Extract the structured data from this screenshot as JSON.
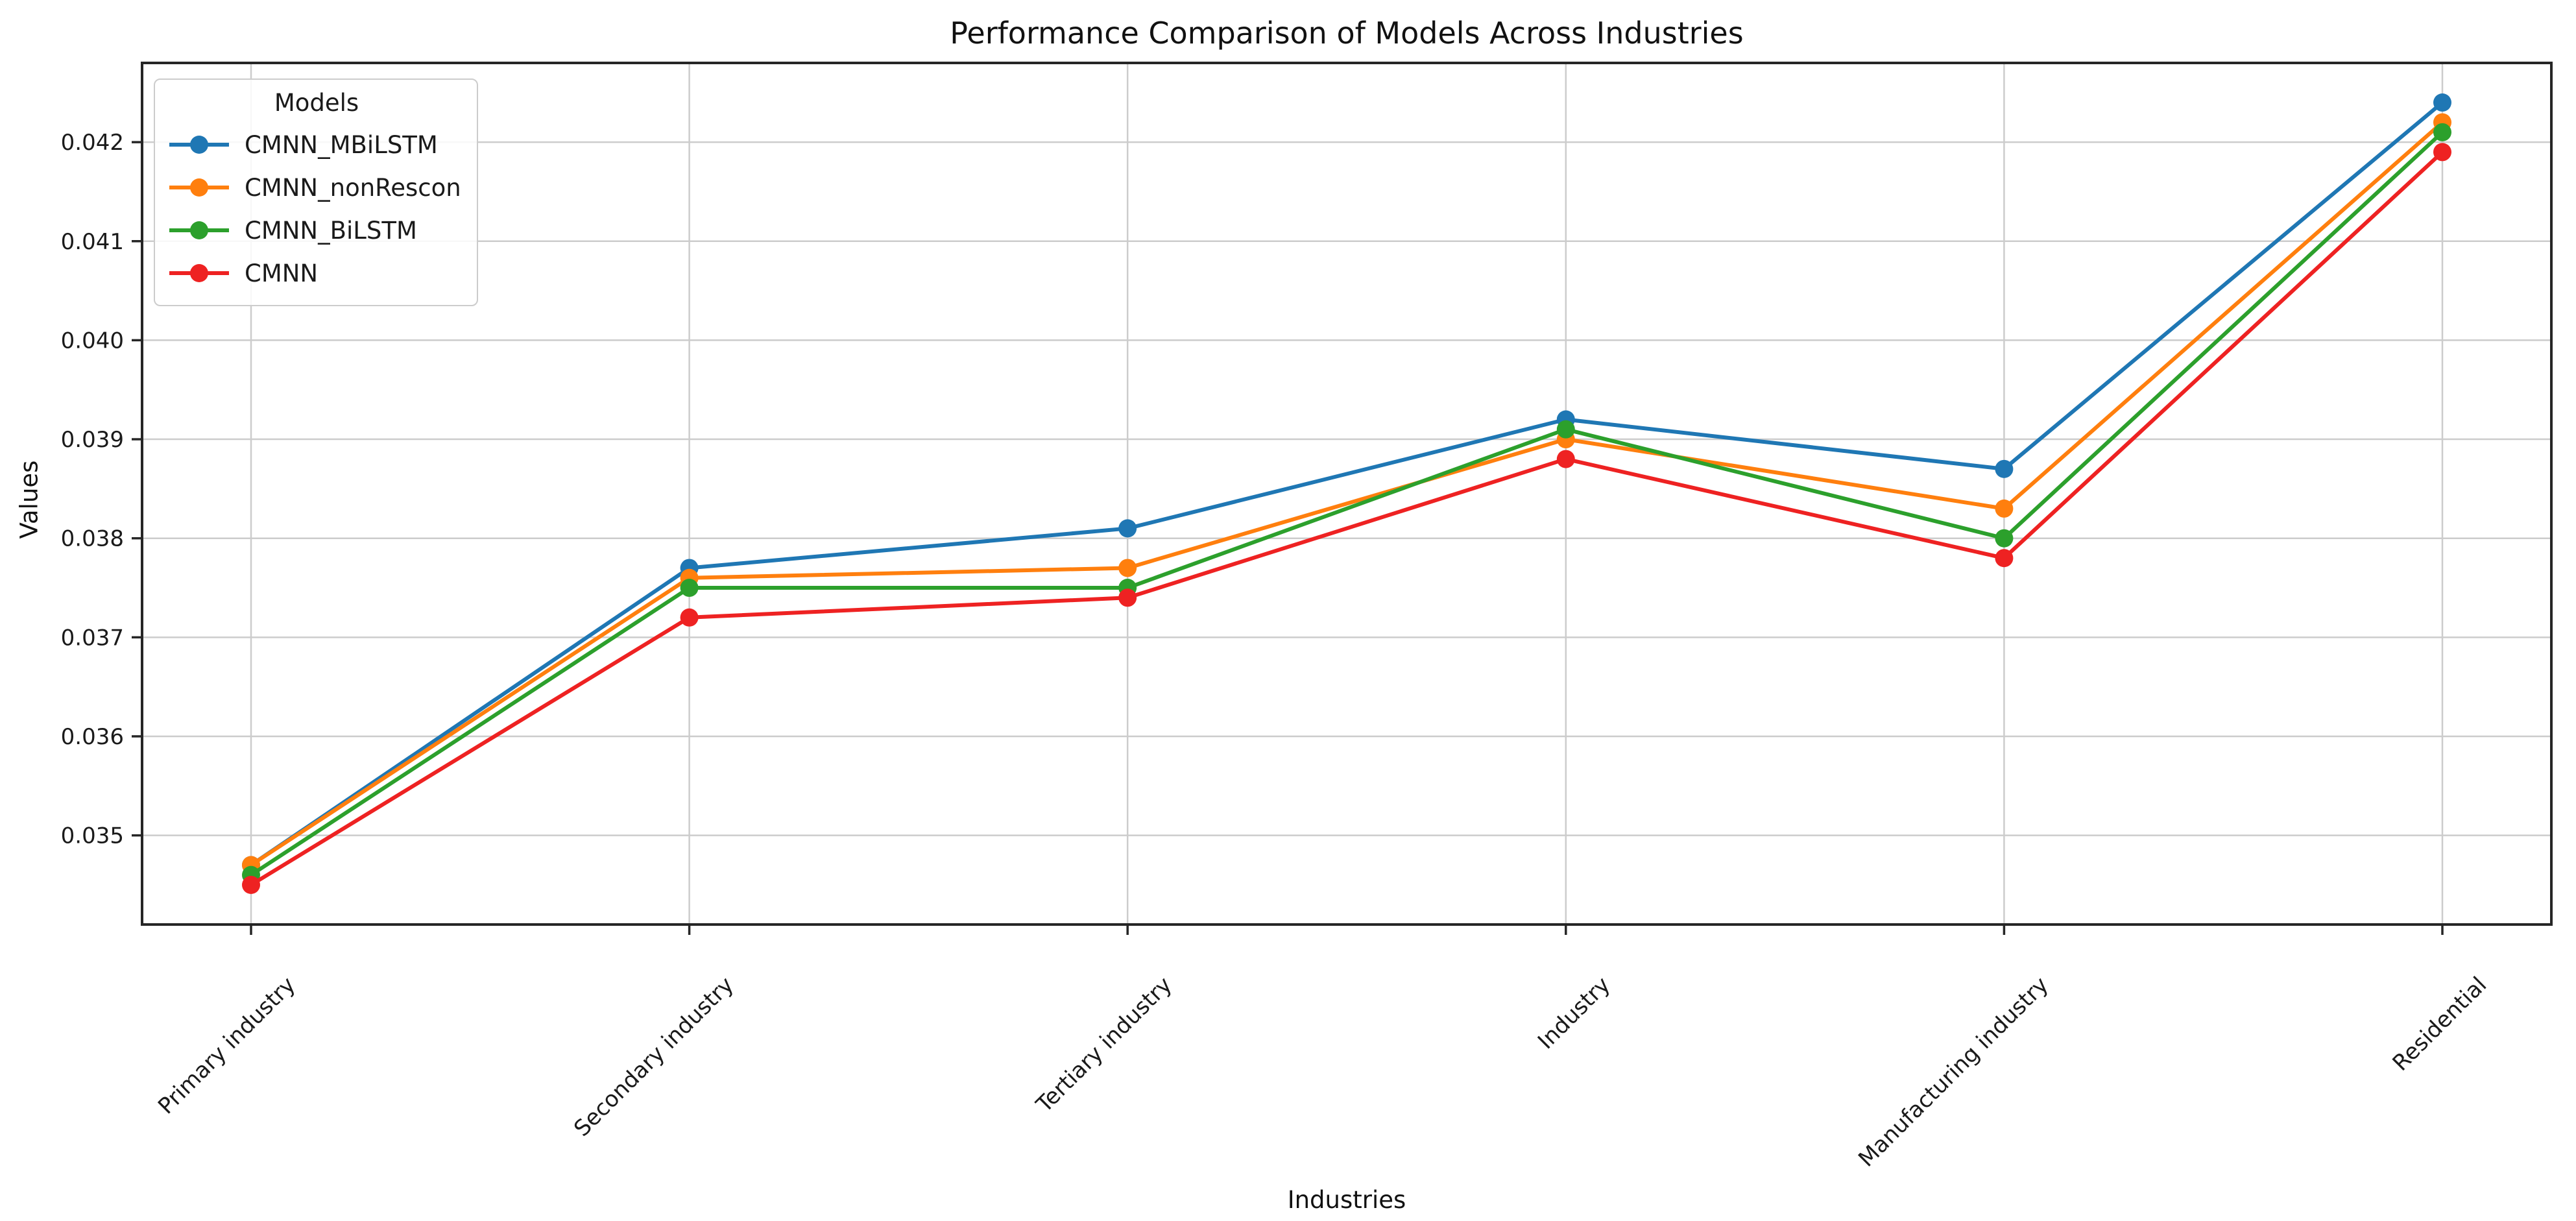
{
  "chart_data": {
    "type": "line",
    "title": "Performance Comparison of Models Across Industries",
    "xlabel": "Industries",
    "ylabel": "Values",
    "legend_title": "Models",
    "legend_position": "upper left",
    "grid": true,
    "marker": "o",
    "categories": [
      "Primary industry",
      "Secondary industry",
      "Tertiary industry",
      "Industry",
      "Manufacturing industry",
      "Residential"
    ],
    "series": [
      {
        "name": "CMNN_MBiLSTM",
        "color": "#1f77b4",
        "values": [
          0.0347,
          0.0377,
          0.0381,
          0.0392,
          0.0387,
          0.0424
        ]
      },
      {
        "name": "CMNN_nonRescon",
        "color": "#ff7f0e",
        "values": [
          0.0347,
          0.0376,
          0.0377,
          0.039,
          0.0383,
          0.0422
        ]
      },
      {
        "name": "CMNN_BiLSTM",
        "color": "#2ca02c",
        "values": [
          0.0346,
          0.0375,
          0.0375,
          0.0391,
          0.038,
          0.0421
        ]
      },
      {
        "name": "CMNN",
        "color": "#ee2222",
        "values": [
          0.0345,
          0.0372,
          0.0374,
          0.0388,
          0.0378,
          0.0419
        ]
      }
    ],
    "yticks": [
      "0.035",
      "0.036",
      "0.037",
      "0.038",
      "0.039",
      "0.040",
      "0.041",
      "0.042"
    ],
    "ylim": [
      0.0341,
      0.0428
    ],
    "colors": {
      "frame": "#262626",
      "gridline": "#cccccc",
      "text": "#1a1a1a"
    }
  }
}
